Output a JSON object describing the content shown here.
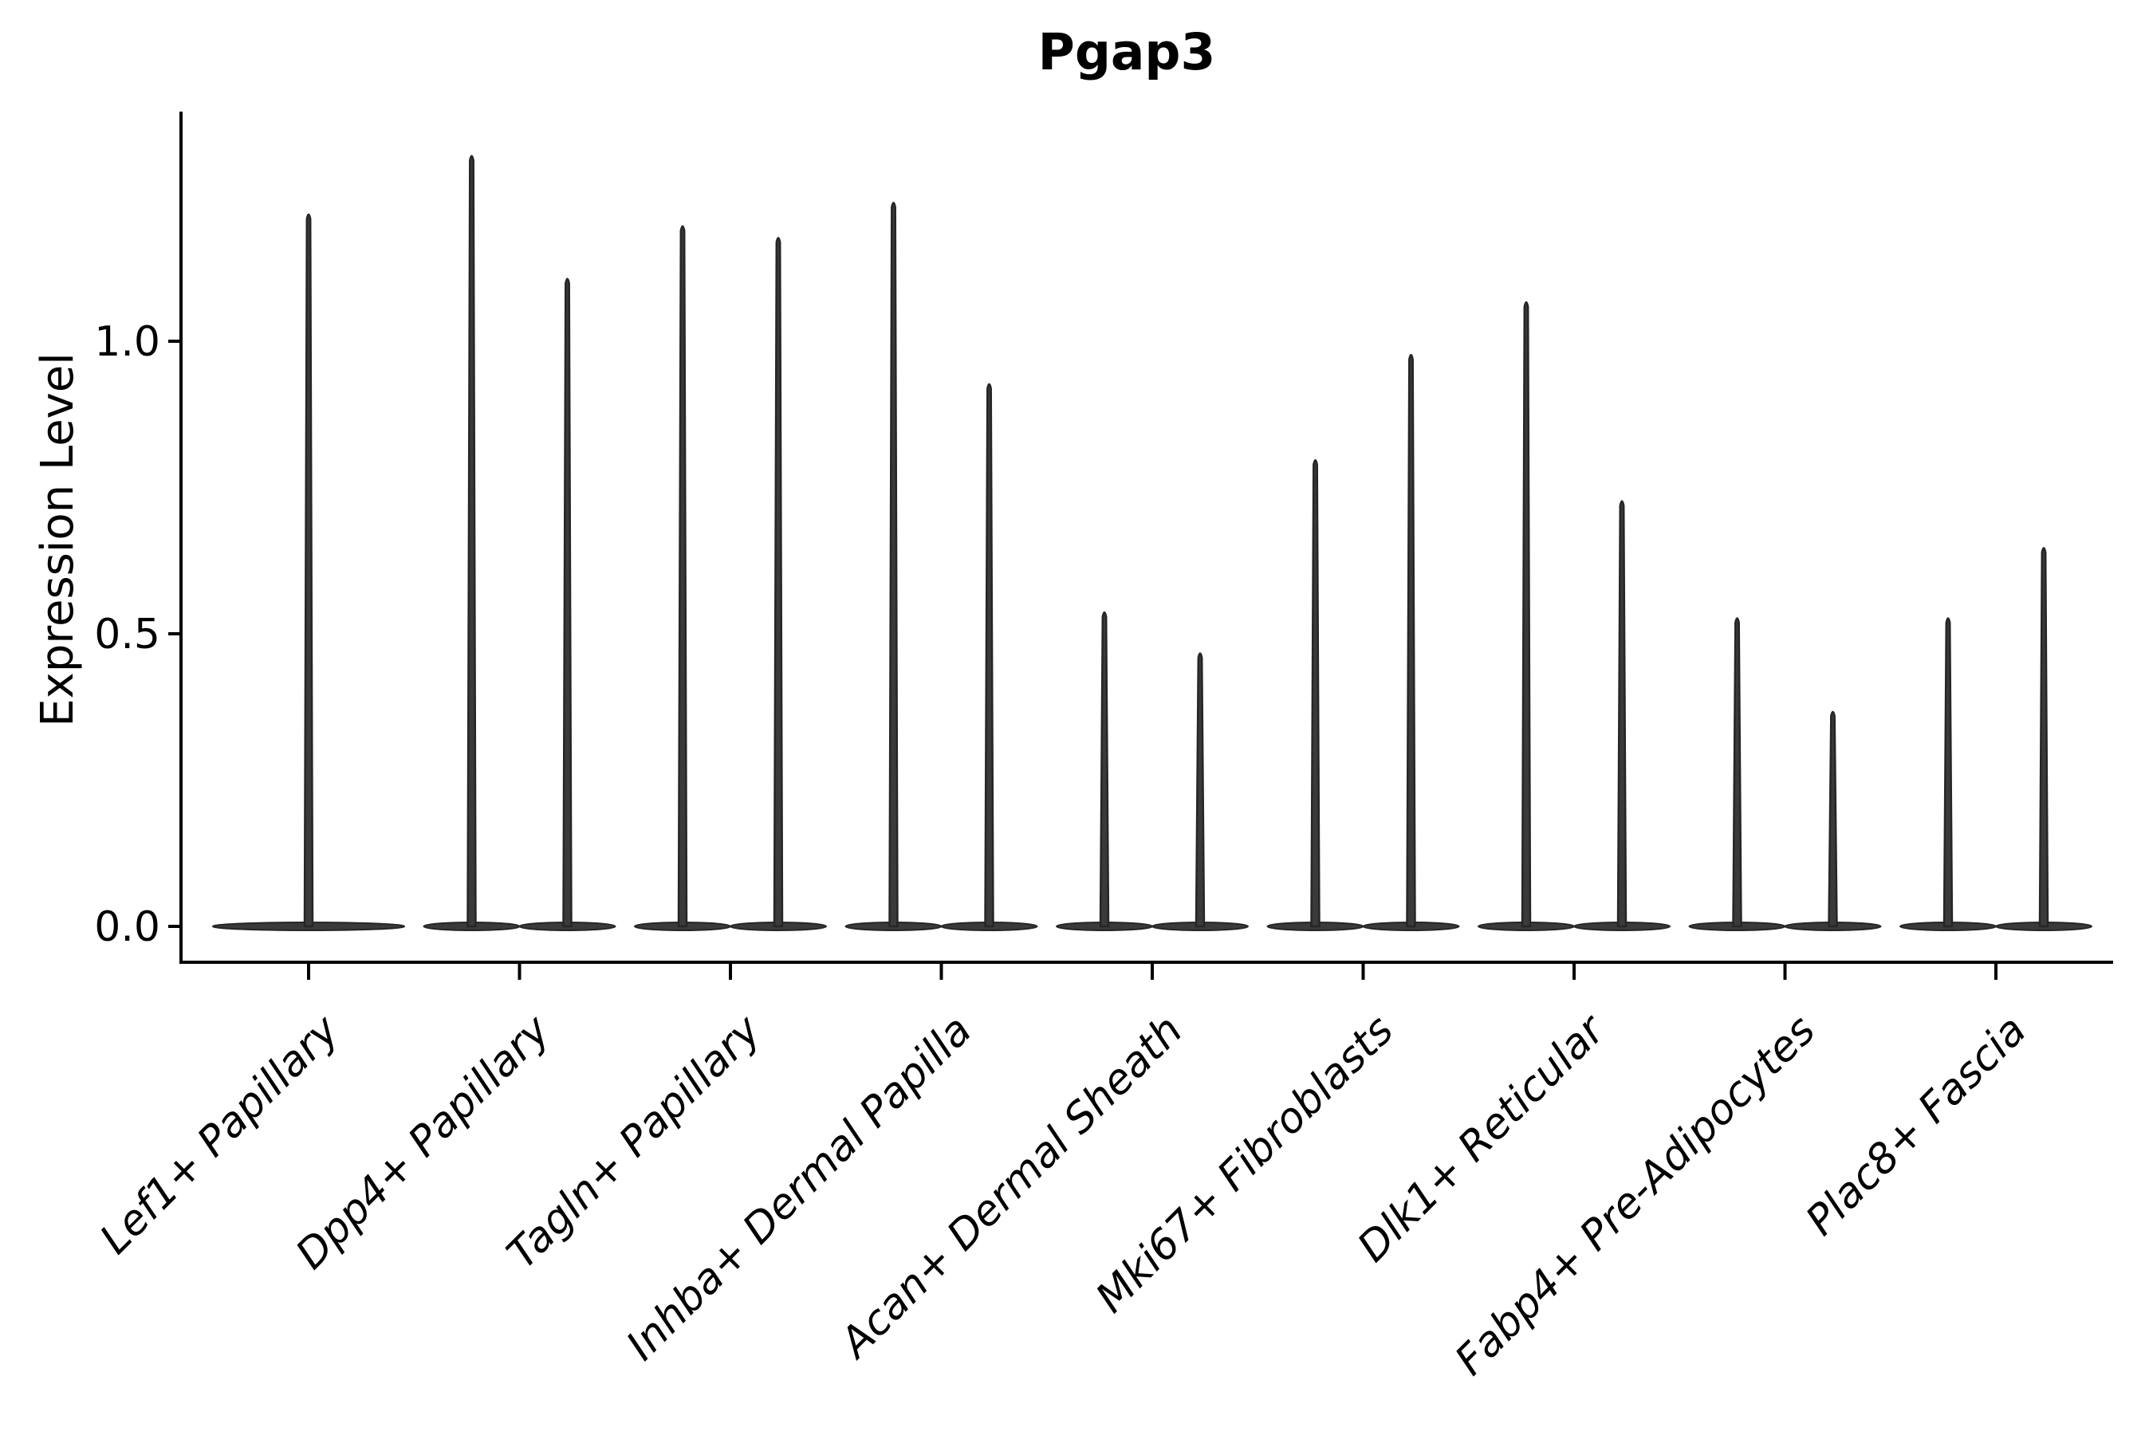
{
  "chart_data": {
    "type": "violin",
    "title": "Pgap3",
    "ylabel": "Expression Level",
    "xlabel": "",
    "grid": false,
    "legend": "none",
    "x_tick_rotation_deg": 45,
    "x_tick_style": "italic",
    "ylim": [
      -0.06,
      1.39
    ],
    "yticks": [
      {
        "label": "0.0",
        "value": 0.0
      },
      {
        "label": "0.5",
        "value": 0.5
      },
      {
        "label": "1.0",
        "value": 1.0
      }
    ],
    "categories": [
      "Lef1+ Papillary",
      "Dpp4+ Papillary",
      "Tagln+ Papillary",
      "Inhba+ Dermal Papilla",
      "Acan+ Dermal Sheath",
      "Mki67+ Fibroblasts",
      "Dlk1+ Reticular",
      "Fabp4+ Pre-Adipocytes",
      "Plac8+ Fascia"
    ],
    "violins": [
      {
        "category": "Lef1+ Papillary",
        "maxima": [
          1.22
        ]
      },
      {
        "category": "Dpp4+ Papillary",
        "maxima": [
          1.32,
          1.11
        ]
      },
      {
        "category": "Tagln+ Papillary",
        "maxima": [
          1.2,
          1.18
        ]
      },
      {
        "category": "Inhba+ Dermal Papilla",
        "maxima": [
          1.24,
          0.93
        ]
      },
      {
        "category": "Acan+ Dermal Sheath",
        "maxima": [
          0.54,
          0.47
        ]
      },
      {
        "category": "Mki67+ Fibroblasts",
        "maxima": [
          0.8,
          0.98
        ]
      },
      {
        "category": "Dlk1+ Reticular",
        "maxima": [
          1.07,
          0.73
        ]
      },
      {
        "category": "Fabp4+ Pre-Adipocytes",
        "maxima": [
          0.53,
          0.37
        ]
      },
      {
        "category": "Plac8+ Fascia",
        "maxima": [
          0.53,
          0.65
        ]
      }
    ],
    "violin_shape_note": "each violin is a thin vertical spike rising from a wide flat base at expression 0 (most cells express 0)",
    "colors": {
      "violin_fill": "#3a3a3a",
      "violin_stroke": "#262626",
      "axis": "#000000",
      "text": "#000000",
      "background": "#ffffff"
    }
  }
}
